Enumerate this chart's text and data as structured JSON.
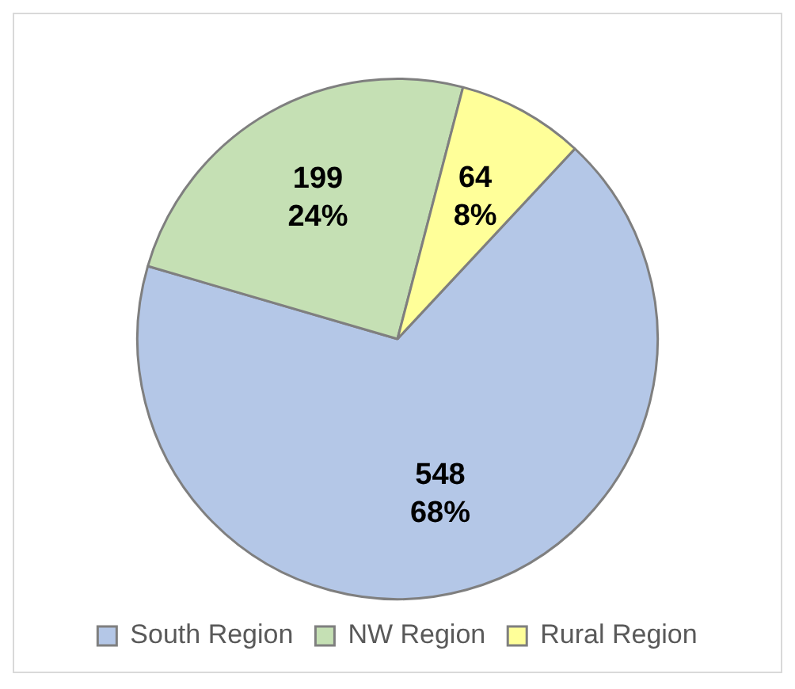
{
  "chart_data": {
    "type": "pie",
    "categories": [
      "South Region",
      "NW Region",
      "Rural Region"
    ],
    "values": [
      548,
      199,
      64
    ],
    "colors": [
      "#b4c7e7",
      "#c5e0b4",
      "#ffff99"
    ],
    "value_labels": [
      "548\n68%",
      "199\n24%",
      "64\n8%"
    ],
    "legend": "bottom"
  }
}
